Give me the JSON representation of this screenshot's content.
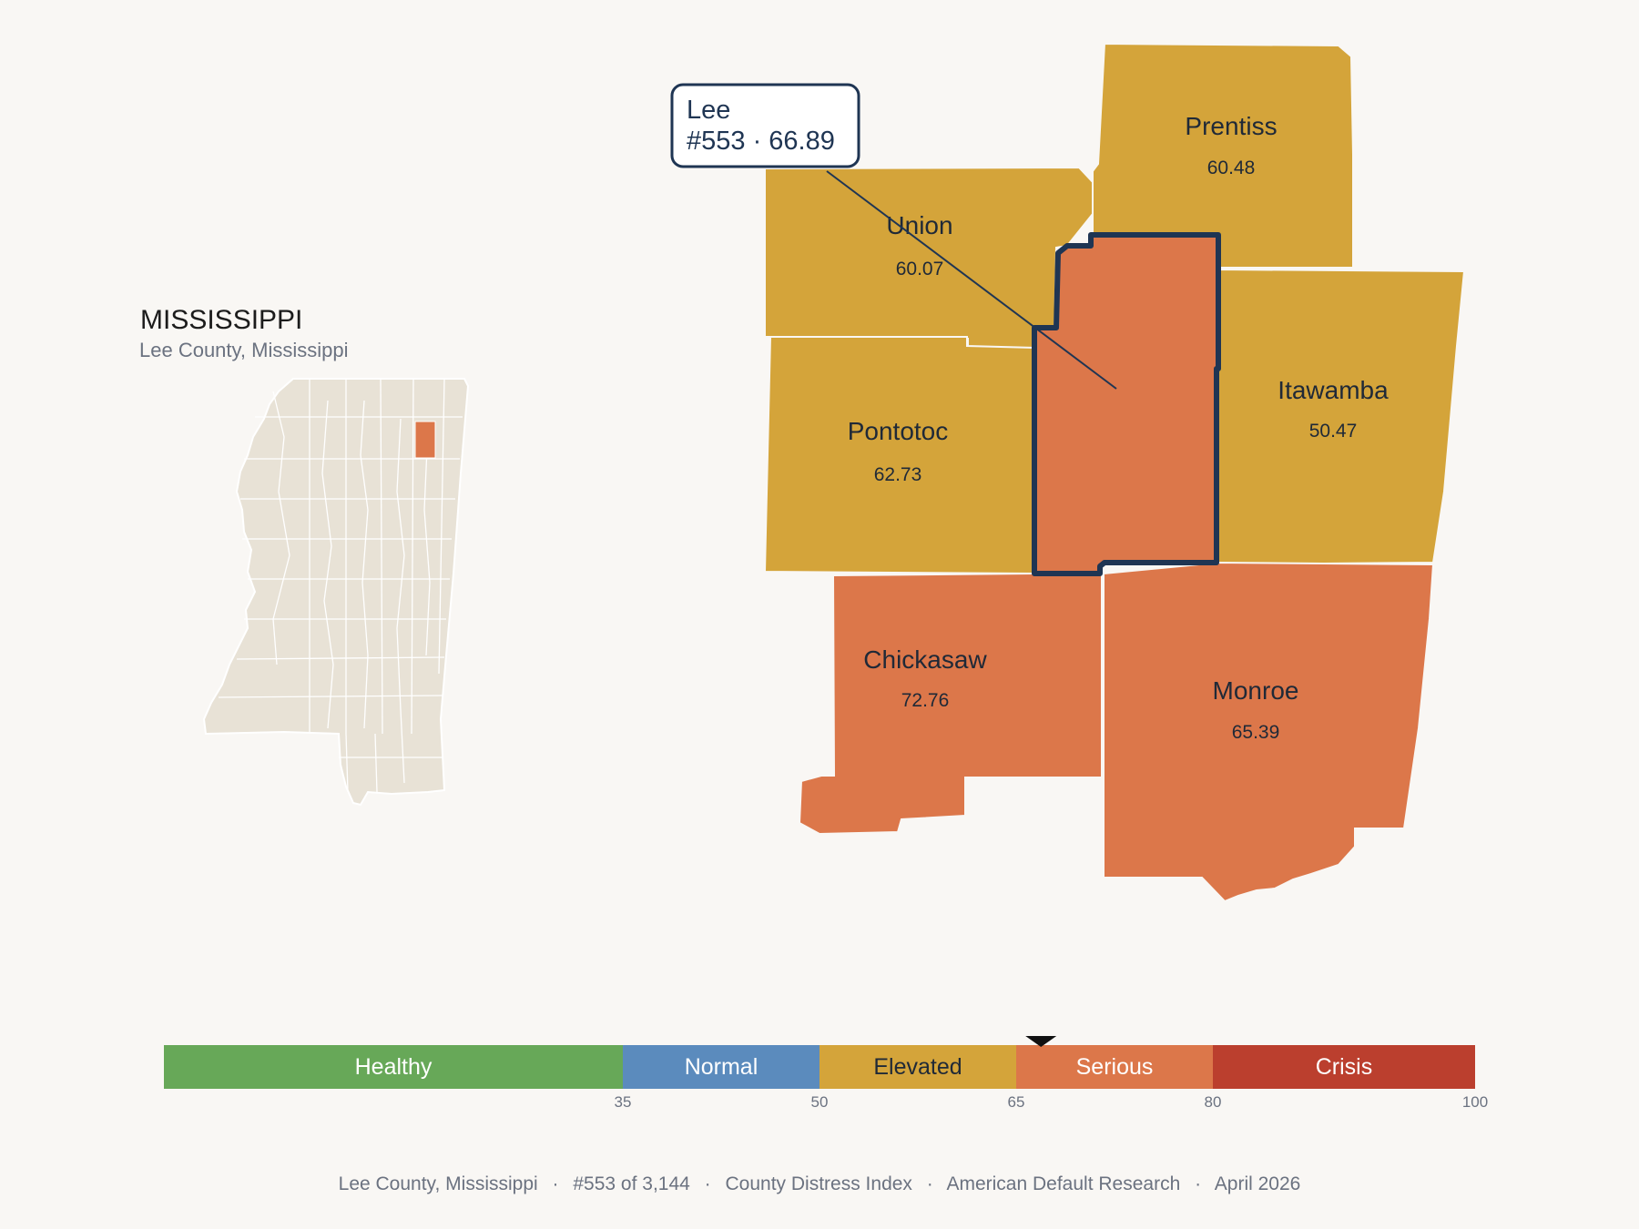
{
  "inset": {
    "state_title": "MISSISSIPPI",
    "subtitle": "Lee County, Mississippi"
  },
  "callout": {
    "name": "Lee",
    "rank_value": "#553 · 66.89"
  },
  "counties": [
    {
      "id": "union",
      "name": "Union",
      "value": "60.07",
      "category": "Elevated"
    },
    {
      "id": "prentiss",
      "name": "Prentiss",
      "value": "60.48",
      "category": "Elevated"
    },
    {
      "id": "pontotoc",
      "name": "Pontotoc",
      "value": "62.73",
      "category": "Elevated"
    },
    {
      "id": "itawamba",
      "name": "Itawamba",
      "value": "50.47",
      "category": "Elevated"
    },
    {
      "id": "chickasaw",
      "name": "Chickasaw",
      "value": "72.76",
      "category": "Serious"
    },
    {
      "id": "monroe",
      "name": "Monroe",
      "value": "65.39",
      "category": "Serious"
    },
    {
      "id": "lee",
      "name": "Lee",
      "value": "66.89",
      "category": "Serious",
      "highlighted": true
    }
  ],
  "legend": {
    "marker_value": 66.89,
    "bands": [
      {
        "label": "Healthy",
        "from": 0,
        "to": 35,
        "color": "#67a858"
      },
      {
        "label": "Normal",
        "from": 35,
        "to": 50,
        "color": "#5b8bbd"
      },
      {
        "label": "Elevated",
        "from": 50,
        "to": 65,
        "color": "#d4a43a"
      },
      {
        "label": "Serious",
        "from": 65,
        "to": 80,
        "color": "#dc774a"
      },
      {
        "label": "Crisis",
        "from": 80,
        "to": 100,
        "color": "#bb3f2e"
      }
    ],
    "ticks": [
      "35",
      "50",
      "65",
      "80",
      "100"
    ]
  },
  "colors": {
    "elevated": "#d4a43a",
    "serious": "#dc774a",
    "highlight_stroke": "#1f3553",
    "inset_fill": "#e8e2d6"
  },
  "footer": {
    "county": "Lee County, Mississippi",
    "rank": "#553 of 3,144",
    "index": "County Distress Index",
    "source": "American Default Research",
    "date": "April 2026",
    "separator": "·"
  }
}
